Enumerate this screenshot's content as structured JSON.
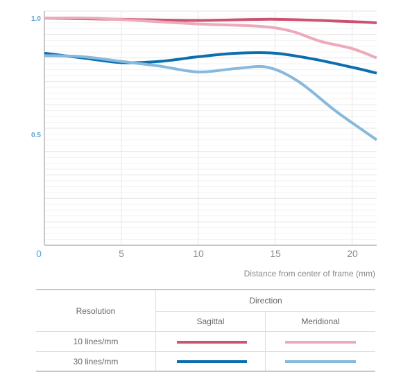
{
  "chart_data": {
    "type": "line",
    "xlabel": "Distance from center of frame (mm)",
    "ylabel": "",
    "xlim": [
      0,
      21.6
    ],
    "ylim": [
      0,
      1.0
    ],
    "x_ticks": [
      "0",
      "5",
      "10",
      "15",
      "20"
    ],
    "y_ticks": [
      "1.0",
      "0.5"
    ],
    "grid": true,
    "series": [
      {
        "color": "#cc5272",
        "x": [
          0,
          5,
          10,
          15,
          20,
          21.6
        ],
        "y": [
          0.97,
          0.965,
          0.96,
          0.965,
          0.955,
          0.95
        ]
      },
      {
        "color": "#ecaabb",
        "x": [
          0,
          3,
          6,
          10,
          14,
          16,
          18,
          20,
          21.6
        ],
        "y": [
          0.97,
          0.97,
          0.96,
          0.945,
          0.935,
          0.915,
          0.87,
          0.84,
          0.8
        ]
      },
      {
        "color": "#0d6eae",
        "x": [
          0,
          2.5,
          5,
          7.5,
          10,
          12.5,
          15,
          17.5,
          20,
          21.6
        ],
        "y": [
          0.82,
          0.8,
          0.78,
          0.785,
          0.805,
          0.82,
          0.82,
          0.795,
          0.76,
          0.735
        ]
      },
      {
        "color": "#86b9dd",
        "x": [
          0,
          2.5,
          5,
          7.5,
          10,
          12.5,
          14.5,
          16.5,
          19,
          21.6
        ],
        "y": [
          0.81,
          0.805,
          0.785,
          0.765,
          0.74,
          0.755,
          0.76,
          0.7,
          0.57,
          0.45
        ]
      }
    ]
  },
  "legend_table": {
    "resolution_header": "Resolution",
    "direction_header": "Direction",
    "sagittal": "Sagittal",
    "meridional": "Meridional",
    "rows": [
      {
        "label": "10 lines/mm",
        "sagittal_color": "#cc5272",
        "meridional_color": "#ecaabb"
      },
      {
        "label": "30 lines/mm",
        "sagittal_color": "#0d6eae",
        "meridional_color": "#86b9dd"
      }
    ]
  }
}
